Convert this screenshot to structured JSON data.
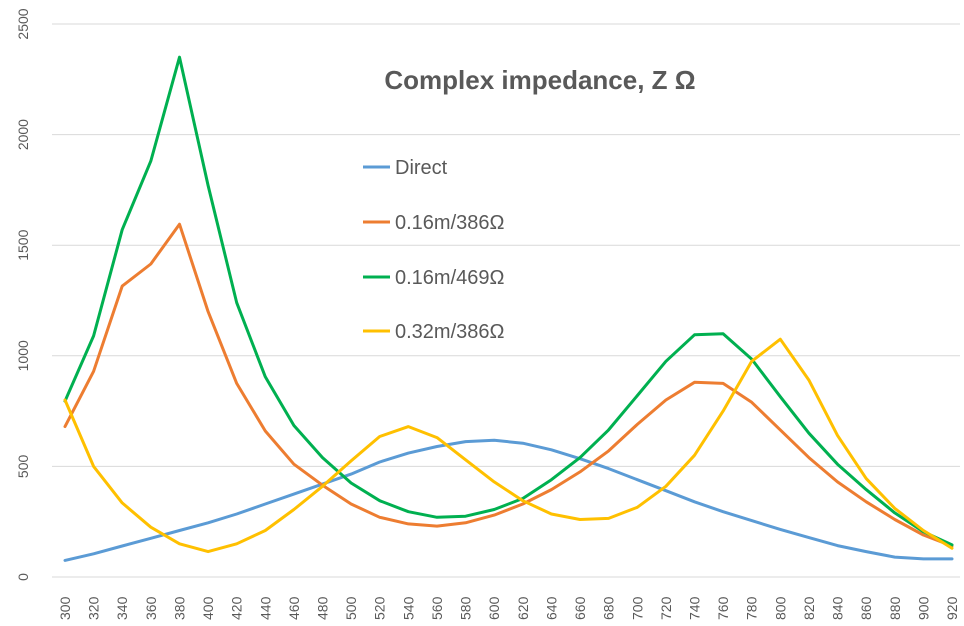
{
  "chart_data": {
    "type": "line",
    "title": "Complex impedance, Z Ω",
    "xlabel": "",
    "ylabel": "",
    "ylim": [
      0,
      2500
    ],
    "yticks": [
      0,
      500,
      1000,
      1500,
      2000,
      2500
    ],
    "grid": true,
    "legend": "top-center",
    "x": [
      300,
      320,
      340,
      360,
      380,
      400,
      420,
      440,
      460,
      480,
      500,
      520,
      540,
      560,
      580,
      600,
      620,
      640,
      660,
      680,
      700,
      720,
      740,
      760,
      780,
      800,
      820,
      840,
      860,
      880,
      900,
      920
    ],
    "series": [
      {
        "name": "Direct",
        "color": "#5B9BD5",
        "values": [
          75,
          105,
          140,
          175,
          210,
          245,
          285,
          330,
          375,
          420,
          465,
          520,
          560,
          590,
          612,
          618,
          605,
          575,
          535,
          490,
          440,
          390,
          340,
          295,
          255,
          215,
          178,
          142,
          115,
          90,
          82,
          82
        ]
      },
      {
        "name": "0.16m/386Ω",
        "color": "#ED7D31",
        "values": [
          680,
          930,
          1315,
          1415,
          1595,
          1200,
          875,
          660,
          510,
          415,
          330,
          270,
          240,
          230,
          245,
          280,
          330,
          395,
          475,
          570,
          690,
          800,
          880,
          875,
          790,
          665,
          540,
          430,
          340,
          260,
          190,
          140
        ]
      },
      {
        "name": "0.16m/469Ω",
        "color": "#00B050",
        "values": [
          795,
          1090,
          1570,
          1880,
          2350,
          1770,
          1240,
          905,
          685,
          540,
          425,
          345,
          295,
          270,
          275,
          305,
          355,
          440,
          540,
          665,
          820,
          975,
          1095,
          1100,
          985,
          815,
          650,
          510,
          395,
          290,
          205,
          145
        ]
      },
      {
        "name": "0.32m/386Ω",
        "color": "#FFC000",
        "values": [
          800,
          500,
          335,
          225,
          150,
          115,
          150,
          210,
          305,
          410,
          525,
          635,
          680,
          630,
          530,
          430,
          345,
          285,
          260,
          265,
          315,
          410,
          550,
          750,
          975,
          1075,
          890,
          640,
          445,
          310,
          210,
          130
        ]
      }
    ]
  }
}
